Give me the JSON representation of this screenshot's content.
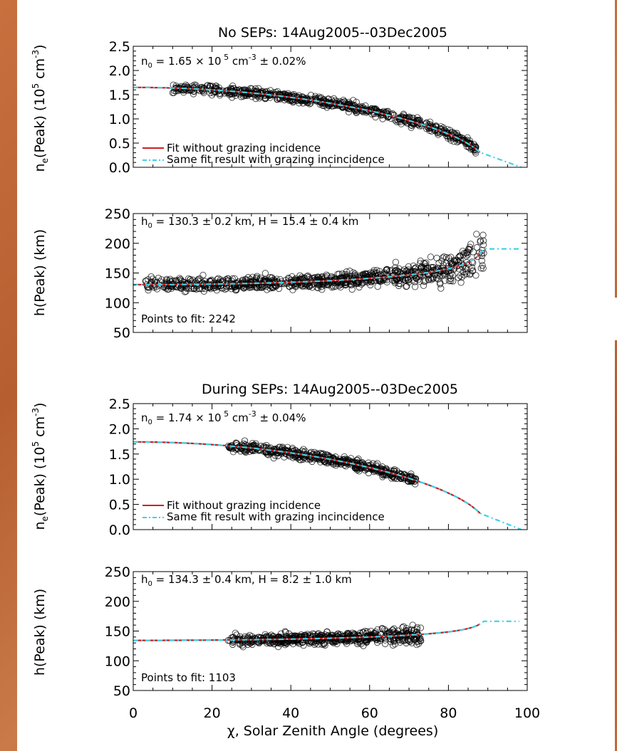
{
  "chart_data": [
    {
      "type": "scatter",
      "title": "No SEPs:  14Aug2005--03Dec2005",
      "ylabel_parts": [
        "n",
        "e",
        "(Peak)  (10",
        "5",
        " cm",
        "-3",
        ")"
      ],
      "xlim": [
        0,
        100
      ],
      "ylim": [
        0,
        2.5
      ],
      "yticks": [
        "0.0",
        "0.5",
        "1.0",
        "1.5",
        "2.0",
        "2.5"
      ],
      "ytick_values": [
        0,
        0.5,
        1.0,
        1.5,
        2.0,
        2.5
      ],
      "annotation_parts": [
        "n",
        "0",
        " =  1.65 × 10",
        " 5",
        " cm",
        "-3",
        " ± 0.02%"
      ],
      "legend": [
        "Fit without grazing incidence",
        "Same fit result with grazing incincidence"
      ],
      "legend_placement": "bottom-left",
      "fit": {
        "n0": 1.65,
        "chi_end": 88
      },
      "scatter": {
        "chi_min": 10,
        "chi_max": 87,
        "seed": 11,
        "count": 700,
        "spread": 0.07
      }
    },
    {
      "type": "scatter",
      "ylabel": "h(Peak)  (km)",
      "xlim": [
        0,
        100
      ],
      "ylim": [
        50,
        250
      ],
      "yticks": [
        "50",
        "100",
        "150",
        "200",
        "250"
      ],
      "ytick_values": [
        50,
        100,
        150,
        200,
        250
      ],
      "annotation_parts": [
        "h",
        "0",
        " =   130.3  ± 0.2  km,  H =   15.4  ± 0.4  km"
      ],
      "points_label": "Points to fit:  2242",
      "fit": {
        "h0": 130.3,
        "H": 15.4,
        "chi_end": 88
      },
      "scatter": {
        "chi_min": 3,
        "chi_max": 89,
        "seed": 23,
        "count": 900,
        "spread": 8
      }
    },
    {
      "type": "scatter",
      "title": "During SEPs:  14Aug2005--03Dec2005",
      "ylabel_parts": [
        "n",
        "e",
        "(Peak)  (10",
        "5",
        " cm",
        "-3",
        ")"
      ],
      "xlim": [
        0,
        100
      ],
      "ylim": [
        0,
        2.5
      ],
      "yticks": [
        "0.0",
        "0.5",
        "1.0",
        "1.5",
        "2.0",
        "2.5"
      ],
      "ytick_values": [
        0,
        0.5,
        1.0,
        1.5,
        2.0,
        2.5
      ],
      "annotation_parts": [
        "n",
        "0",
        " =  1.74 × 10",
        " 5",
        " cm",
        "-3",
        " ± 0.04%"
      ],
      "legend": [
        "Fit without grazing incidence",
        "Same fit result with grazing incincidence"
      ],
      "legend_placement": "bottom-left",
      "fit": {
        "n0": 1.74,
        "chi_end": 88
      },
      "scatter": {
        "chi_min": 24,
        "chi_max": 72,
        "seed": 37,
        "count": 500,
        "spread": 0.07
      }
    },
    {
      "type": "scatter",
      "ylabel": "h(Peak)  (km)",
      "xlabel": "χ, Solar Zenith Angle (degrees)",
      "xlim": [
        0,
        100
      ],
      "ylim": [
        50,
        250
      ],
      "xticks": [
        "0",
        "20",
        "40",
        "60",
        "80",
        "100"
      ],
      "xtick_values": [
        0,
        20,
        40,
        60,
        80,
        100
      ],
      "yticks": [
        "50",
        "100",
        "150",
        "200",
        "250"
      ],
      "ytick_values": [
        50,
        100,
        150,
        200,
        250
      ],
      "annotation_parts": [
        "h",
        "0",
        " =   134.3  ± 0.4  km,  H =    8.2  ± 1.0  km"
      ],
      "points_label": "Points to fit:  1103",
      "fit": {
        "h0": 134.3,
        "H": 8.2,
        "chi_end": 88
      },
      "scatter": {
        "chi_min": 24,
        "chi_max": 73,
        "seed": 53,
        "count": 600,
        "spread": 7
      }
    }
  ],
  "colors": {
    "fit_without": "#cc1f1f",
    "fit_with": "#3fd0e8",
    "points": "#000000"
  }
}
